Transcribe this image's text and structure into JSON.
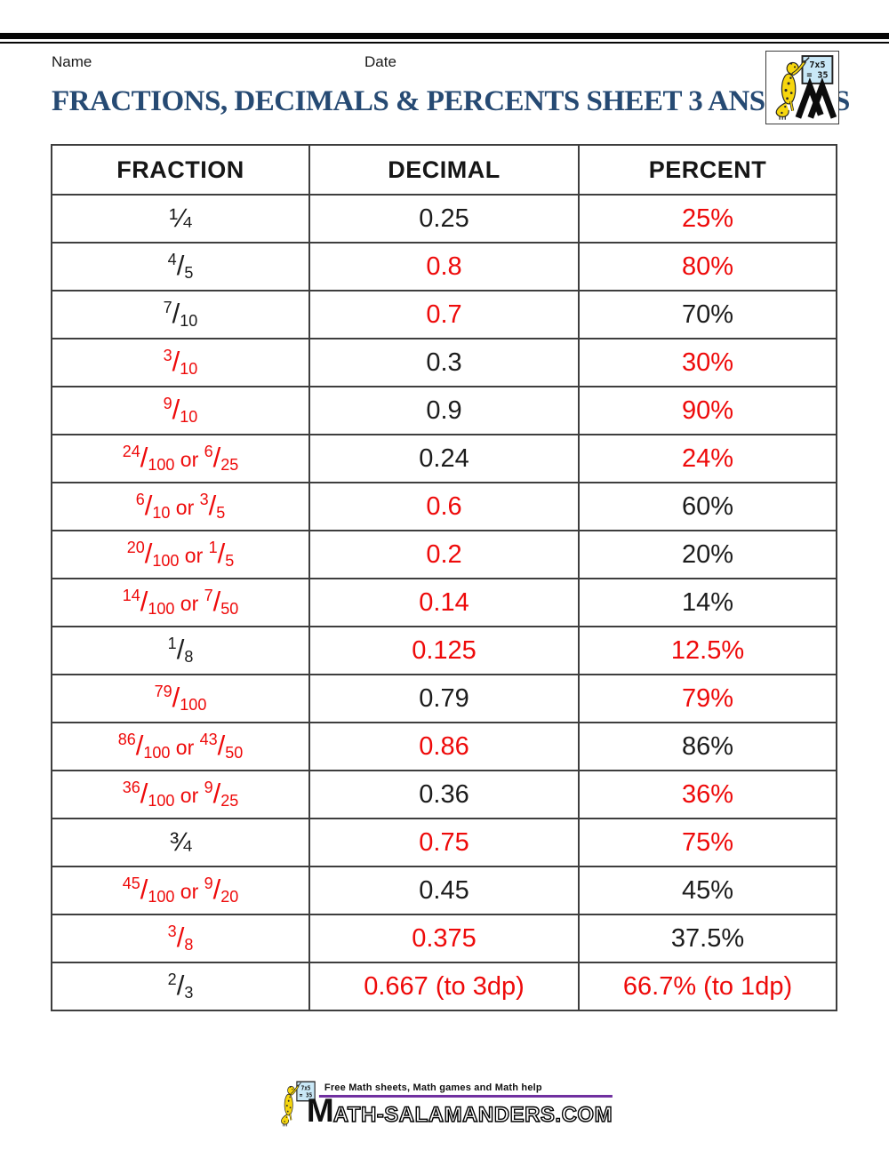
{
  "page": {
    "name_label": "Name",
    "date_label": "Date",
    "title": "FRACTIONS, DECIMALS & PERCENTS SHEET 3 ANSWERS",
    "title_color": "#264a73"
  },
  "logo": {
    "board_line1": "7x5",
    "board_line2": "= 35"
  },
  "table": {
    "columns": [
      "FRACTION",
      "DECIMAL",
      "PERCENT"
    ],
    "colors": {
      "answer": "#ee0a0a",
      "given": "#1c1c1c"
    },
    "rows": [
      {
        "fraction": "¼",
        "fraction_color": "black",
        "decimal": "0.25",
        "decimal_color": "black",
        "percent": "25%",
        "percent_color": "red"
      },
      {
        "fraction": "4/5",
        "fraction_color": "black",
        "decimal": "0.8",
        "decimal_color": "red",
        "percent": "80%",
        "percent_color": "red"
      },
      {
        "fraction": "7/10",
        "fraction_color": "black",
        "decimal": "0.7",
        "decimal_color": "red",
        "percent": "70%",
        "percent_color": "black"
      },
      {
        "fraction": "3/10",
        "fraction_color": "red",
        "decimal": "0.3",
        "decimal_color": "black",
        "percent": "30%",
        "percent_color": "red"
      },
      {
        "fraction": "9/10",
        "fraction_color": "red",
        "decimal": "0.9",
        "decimal_color": "black",
        "percent": "90%",
        "percent_color": "red"
      },
      {
        "fraction": "24/100 or 6/25",
        "fraction_color": "red",
        "decimal": "0.24",
        "decimal_color": "black",
        "percent": "24%",
        "percent_color": "red"
      },
      {
        "fraction": "6/10 or 3/5",
        "fraction_color": "red",
        "decimal": "0.6",
        "decimal_color": "red",
        "percent": "60%",
        "percent_color": "black"
      },
      {
        "fraction": "20/100 or 1/5",
        "fraction_color": "red",
        "decimal": "0.2",
        "decimal_color": "red",
        "percent": "20%",
        "percent_color": "black"
      },
      {
        "fraction": "14/100 or 7/50",
        "fraction_color": "red",
        "decimal": "0.14",
        "decimal_color": "red",
        "percent": "14%",
        "percent_color": "black"
      },
      {
        "fraction": "1/8",
        "fraction_color": "black",
        "decimal": "0.125",
        "decimal_color": "red",
        "percent": "12.5%",
        "percent_color": "red"
      },
      {
        "fraction": "79/100",
        "fraction_color": "red",
        "decimal": "0.79",
        "decimal_color": "black",
        "percent": "79%",
        "percent_color": "red"
      },
      {
        "fraction": "86/100 or 43/50",
        "fraction_color": "red",
        "decimal": "0.86",
        "decimal_color": "red",
        "percent": "86%",
        "percent_color": "black"
      },
      {
        "fraction": "36/100 or 9/25",
        "fraction_color": "red",
        "decimal": "0.36",
        "decimal_color": "black",
        "percent": "36%",
        "percent_color": "red"
      },
      {
        "fraction": "¾",
        "fraction_color": "black",
        "decimal": "0.75",
        "decimal_color": "red",
        "percent": "75%",
        "percent_color": "red"
      },
      {
        "fraction": "45/100 or 9/20",
        "fraction_color": "red",
        "decimal": "0.45",
        "decimal_color": "black",
        "percent": "45%",
        "percent_color": "black"
      },
      {
        "fraction": "3/8",
        "fraction_color": "red",
        "decimal": "0.375",
        "decimal_color": "red",
        "percent": "37.5%",
        "percent_color": "black"
      },
      {
        "fraction": "2/3",
        "fraction_color": "black",
        "decimal": "0.667 (to 3dp)",
        "decimal_color": "red",
        "percent": "66.7% (to 1dp)",
        "percent_color": "red"
      }
    ]
  },
  "footer": {
    "tagline": "Free Math sheets, Math games and Math help",
    "wordmark_initial": "M",
    "wordmark_rest": "ATH-SALAMANDERS.COM",
    "rule_color": "#7030a0"
  }
}
